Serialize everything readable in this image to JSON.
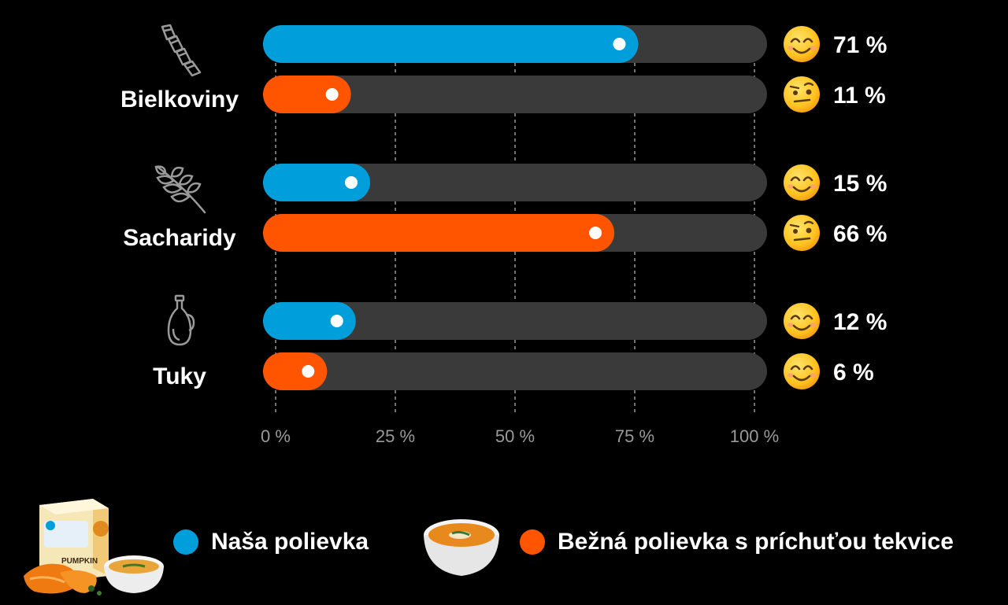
{
  "chart_data": {
    "type": "bar",
    "orientation": "horizontal",
    "categories": [
      "Bielkoviny",
      "Sacharidy",
      "Tuky"
    ],
    "series": [
      {
        "name": "Naša polievka",
        "color": "#009FDB",
        "values": [
          71,
          15,
          12
        ],
        "labels": [
          "71 %",
          "15 %",
          "12 %"
        ],
        "emoji": [
          "smiling-face-icon",
          "smiling-face-icon",
          "smiling-face-icon"
        ]
      },
      {
        "name": "Bežná polievka s príchuťou tekvice",
        "color": "#FF5500",
        "values": [
          11,
          66,
          6
        ],
        "labels": [
          "11 %",
          "66 %",
          "6 %"
        ],
        "emoji": [
          "raised-eyebrow-face-icon",
          "raised-eyebrow-face-icon",
          "smiling-face-icon"
        ]
      }
    ],
    "xlim": [
      0,
      100
    ],
    "xticks": [
      0,
      25,
      50,
      75,
      100
    ],
    "xtick_labels": [
      "0 %",
      "25 %",
      "50 %",
      "75 %",
      "100 %"
    ],
    "grid": "vertical-dashed",
    "legend": "bottom",
    "category_icons": [
      "pasta-icon",
      "wheat-icon",
      "oil-bottle-icon"
    ],
    "track_color": "#3A3A3A"
  },
  "legend": {
    "items": [
      {
        "label": "Naša polievka",
        "color": "#009FDB",
        "product": "packaged-soup-icon"
      },
      {
        "label": "Bežná polievka s príchuťou tekvice",
        "color": "#FF5500",
        "product": "soup-bowl-icon"
      }
    ]
  },
  "product_box_text": "PUMPKIN"
}
